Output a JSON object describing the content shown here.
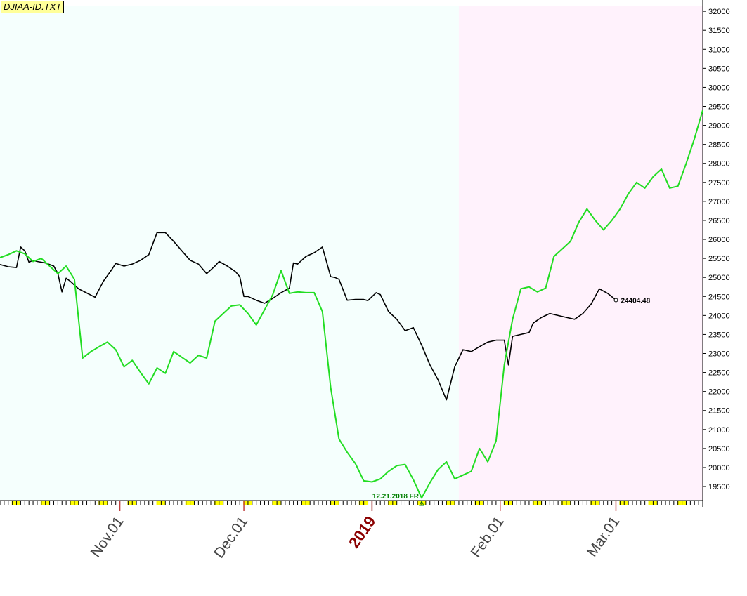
{
  "file_label": "DJIAA-ID.TXT",
  "colors": {
    "left_background": "#f5fffd",
    "right_background": "#fff2fc",
    "price_line": "#000000",
    "forecast_line": "#22dd22",
    "axis_marker": "#ffff00",
    "year_label": "#8b0000",
    "low_annotation": "#008000"
  },
  "chart_data": {
    "type": "line",
    "title": "",
    "xlabel": "",
    "ylabel": "",
    "x_range": [
      "2018-10-03",
      "2019-03-22"
    ],
    "ylim": [
      19150,
      32150
    ],
    "grid": false,
    "y_ticks": [
      19500,
      20000,
      20500,
      21000,
      21500,
      22000,
      22500,
      23000,
      23500,
      24000,
      24500,
      25000,
      25500,
      26000,
      26500,
      27000,
      27500,
      28000,
      28500,
      29000,
      29500,
      30000,
      30500,
      31000,
      31500,
      32000
    ],
    "x_tick_labels": [
      {
        "date": "2018-11-01",
        "label": "Nov.01",
        "type": "month"
      },
      {
        "date": "2018-12-01",
        "label": "Dec.01",
        "type": "month"
      },
      {
        "date": "2019-01-01",
        "label": "2019",
        "type": "year"
      },
      {
        "date": "2019-02-01",
        "label": "Feb.01",
        "type": "month"
      },
      {
        "date": "2019-03-01",
        "label": "Mar.01",
        "type": "month"
      }
    ],
    "background_split_date": "2019-01-22",
    "series": [
      {
        "style": "price",
        "points": [
          [
            "2018-10-03",
            25340
          ],
          [
            "2018-10-04",
            25310
          ],
          [
            "2018-10-05",
            25280
          ],
          [
            "2018-10-06",
            25270
          ],
          [
            "2018-10-07",
            25260
          ],
          [
            "2018-10-08",
            25800
          ],
          [
            "2018-10-09",
            25700
          ],
          [
            "2018-10-10",
            25400
          ],
          [
            "2018-10-11",
            25450
          ],
          [
            "2018-10-12",
            25420
          ],
          [
            "2018-10-13",
            25400
          ],
          [
            "2018-10-14",
            25380
          ],
          [
            "2018-10-15",
            25340
          ],
          [
            "2018-10-16",
            25300
          ],
          [
            "2018-10-17",
            25100
          ],
          [
            "2018-10-18",
            24620
          ],
          [
            "2018-10-19",
            24980
          ],
          [
            "2018-10-20",
            24900
          ],
          [
            "2018-10-21",
            24800
          ],
          [
            "2018-10-22",
            24700
          ],
          [
            "2018-10-26",
            24480
          ],
          [
            "2018-10-28",
            24900
          ],
          [
            "2018-10-30",
            25200
          ],
          [
            "2018-10-31",
            25370
          ],
          [
            "2018-11-02",
            25300
          ],
          [
            "2018-11-04",
            25350
          ],
          [
            "2018-11-06",
            25450
          ],
          [
            "2018-11-08",
            25600
          ],
          [
            "2018-11-10",
            26180
          ],
          [
            "2018-11-12",
            26180
          ],
          [
            "2018-11-14",
            25950
          ],
          [
            "2018-11-16",
            25700
          ],
          [
            "2018-11-18",
            25450
          ],
          [
            "2018-11-20",
            25350
          ],
          [
            "2018-11-22",
            25100
          ],
          [
            "2018-11-24",
            25300
          ],
          [
            "2018-11-25",
            25420
          ],
          [
            "2018-11-27",
            25300
          ],
          [
            "2018-11-29",
            25150
          ],
          [
            "2018-11-30",
            25020
          ],
          [
            "2018-12-01",
            24500
          ],
          [
            "2018-12-02",
            24500
          ],
          [
            "2018-12-04",
            24400
          ],
          [
            "2018-12-06",
            24320
          ],
          [
            "2018-12-08",
            24450
          ],
          [
            "2018-12-10",
            24600
          ],
          [
            "2018-12-12",
            24720
          ],
          [
            "2018-12-13",
            25380
          ],
          [
            "2018-12-14",
            25350
          ],
          [
            "2018-12-16",
            25550
          ],
          [
            "2018-12-18",
            25650
          ],
          [
            "2018-12-20",
            25800
          ],
          [
            "2018-12-22",
            25020
          ],
          [
            "2018-12-23",
            25000
          ],
          [
            "2018-12-24",
            24950
          ],
          [
            "2018-12-26",
            24400
          ],
          [
            "2018-12-28",
            24420
          ],
          [
            "2018-12-30",
            24420
          ],
          [
            "2018-12-31",
            24390
          ],
          [
            "2019-01-02",
            24600
          ],
          [
            "2019-01-03",
            24550
          ],
          [
            "2019-01-05",
            24100
          ],
          [
            "2019-01-07",
            23900
          ],
          [
            "2019-01-09",
            23600
          ],
          [
            "2019-01-11",
            23680
          ],
          [
            "2019-01-13",
            23220
          ],
          [
            "2019-01-15",
            22700
          ],
          [
            "2019-01-17",
            22300
          ],
          [
            "2019-01-19",
            21780
          ],
          [
            "2019-01-21",
            22650
          ],
          [
            "2019-01-23",
            23100
          ],
          [
            "2019-01-25",
            23050
          ],
          [
            "2019-01-27",
            23180
          ],
          [
            "2019-01-29",
            23300
          ],
          [
            "2019-01-31",
            23350
          ],
          [
            "2019-02-02",
            23350
          ],
          [
            "2019-02-03",
            22700
          ],
          [
            "2019-02-04",
            23450
          ],
          [
            "2019-02-06",
            23500
          ],
          [
            "2019-02-08",
            23550
          ],
          [
            "2019-02-09",
            23800
          ],
          [
            "2019-02-11",
            23950
          ],
          [
            "2019-02-13",
            24050
          ],
          [
            "2019-02-15",
            24000
          ],
          [
            "2019-02-17",
            23950
          ],
          [
            "2019-02-19",
            23900
          ],
          [
            "2019-02-21",
            24050
          ],
          [
            "2019-02-23",
            24300
          ],
          [
            "2019-02-25",
            24700
          ],
          [
            "2019-02-27",
            24580
          ],
          [
            "2019-03-01",
            24404.48
          ]
        ]
      },
      {
        "style": "forecast",
        "points": [
          [
            "2018-10-03",
            25520
          ],
          [
            "2018-10-05",
            25600
          ],
          [
            "2018-10-07",
            25700
          ],
          [
            "2018-10-09",
            25620
          ],
          [
            "2018-10-11",
            25420
          ],
          [
            "2018-10-13",
            25500
          ],
          [
            "2018-10-15",
            25300
          ],
          [
            "2018-10-17",
            25100
          ],
          [
            "2018-10-19",
            25300
          ],
          [
            "2018-10-21",
            24950
          ],
          [
            "2018-10-23",
            22880
          ],
          [
            "2018-10-25",
            23050
          ],
          [
            "2018-10-27",
            23180
          ],
          [
            "2018-10-29",
            23300
          ],
          [
            "2018-10-31",
            23100
          ],
          [
            "2018-11-02",
            22650
          ],
          [
            "2018-11-04",
            22820
          ],
          [
            "2018-11-06",
            22500
          ],
          [
            "2018-11-08",
            22200
          ],
          [
            "2018-11-10",
            22620
          ],
          [
            "2018-11-12",
            22480
          ],
          [
            "2018-11-14",
            23050
          ],
          [
            "2018-11-16",
            22900
          ],
          [
            "2018-11-18",
            22750
          ],
          [
            "2018-11-20",
            22950
          ],
          [
            "2018-11-22",
            22880
          ],
          [
            "2018-11-24",
            23850
          ],
          [
            "2018-11-26",
            24050
          ],
          [
            "2018-11-28",
            24250
          ],
          [
            "2018-11-30",
            24280
          ],
          [
            "2018-12-02",
            24050
          ],
          [
            "2018-12-04",
            23750
          ],
          [
            "2018-12-06",
            24150
          ],
          [
            "2018-12-08",
            24550
          ],
          [
            "2018-12-10",
            25180
          ],
          [
            "2018-12-12",
            24580
          ],
          [
            "2018-12-14",
            24620
          ],
          [
            "2018-12-16",
            24600
          ],
          [
            "2018-12-18",
            24600
          ],
          [
            "2018-12-20",
            24100
          ],
          [
            "2018-12-22",
            22100
          ],
          [
            "2018-12-24",
            20750
          ],
          [
            "2018-12-26",
            20400
          ],
          [
            "2018-12-28",
            20100
          ],
          [
            "2018-12-30",
            19650
          ],
          [
            "2019-01-01",
            19620
          ],
          [
            "2019-01-03",
            19700
          ],
          [
            "2019-01-05",
            19900
          ],
          [
            "2019-01-07",
            20050
          ],
          [
            "2019-01-09",
            20080
          ],
          [
            "2019-01-11",
            19680
          ],
          [
            "2019-01-13",
            19200
          ],
          [
            "2019-01-15",
            19600
          ],
          [
            "2019-01-17",
            19950
          ],
          [
            "2019-01-19",
            20150
          ],
          [
            "2019-01-21",
            19700
          ],
          [
            "2019-01-23",
            19800
          ],
          [
            "2019-01-25",
            19900
          ],
          [
            "2019-01-27",
            20500
          ],
          [
            "2019-01-29",
            20150
          ],
          [
            "2019-01-31",
            20700
          ],
          [
            "2019-02-02",
            22700
          ],
          [
            "2019-02-04",
            23900
          ],
          [
            "2019-02-06",
            24700
          ],
          [
            "2019-02-08",
            24750
          ],
          [
            "2019-02-10",
            24620
          ],
          [
            "2019-02-12",
            24720
          ],
          [
            "2019-02-14",
            25550
          ],
          [
            "2019-02-16",
            25750
          ],
          [
            "2019-02-18",
            25950
          ],
          [
            "2019-02-20",
            26450
          ],
          [
            "2019-02-22",
            26800
          ],
          [
            "2019-02-24",
            26500
          ],
          [
            "2019-02-26",
            26250
          ],
          [
            "2019-02-28",
            26500
          ],
          [
            "2019-03-02",
            26800
          ],
          [
            "2019-03-04",
            27200
          ],
          [
            "2019-03-06",
            27500
          ],
          [
            "2019-03-08",
            27350
          ],
          [
            "2019-03-10",
            27650
          ],
          [
            "2019-03-12",
            27850
          ],
          [
            "2019-03-14",
            27350
          ],
          [
            "2019-03-16",
            27400
          ],
          [
            "2019-03-18",
            28000
          ],
          [
            "2019-03-20",
            28650
          ],
          [
            "2019-03-22",
            29400
          ]
        ]
      }
    ],
    "annotations": [
      {
        "label": "24404.48",
        "date": "2019-03-01",
        "value": 24404.48,
        "type": "last-price"
      },
      {
        "label": "12.21.2018 FR",
        "date": "2019-01-13",
        "value": 19200,
        "type": "low-marker"
      }
    ]
  }
}
